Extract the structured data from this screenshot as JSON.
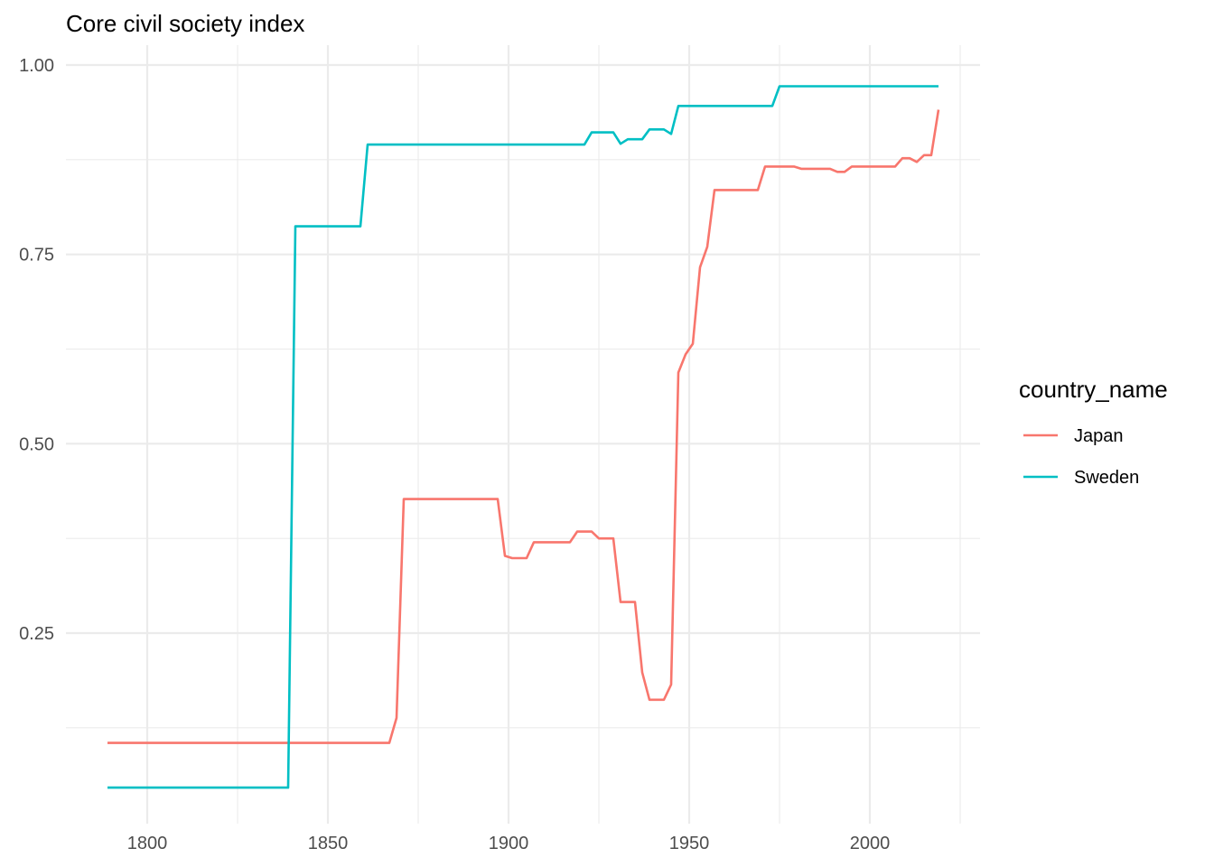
{
  "chart_data": {
    "type": "line",
    "title": "Core civil society index",
    "xlabel": "",
    "ylabel": "",
    "xlim": [
      1789,
      2019
    ],
    "ylim": [
      0.04,
      1.0
    ],
    "x_ticks": [
      1800,
      1850,
      1900,
      1950,
      2000
    ],
    "x_tick_labels": [
      "1800",
      "1850",
      "1900",
      "1950",
      "2000"
    ],
    "y_ticks": [
      0.25,
      0.5,
      0.75,
      1.0
    ],
    "y_tick_labels": [
      "0.25",
      "0.50",
      "0.75",
      "1.00"
    ],
    "grid": true,
    "legend": {
      "title": "country_name",
      "position": "right"
    },
    "series": [
      {
        "name": "Japan",
        "color": "#F8766D",
        "points": [
          [
            1789,
            0.105
          ],
          [
            1867,
            0.105
          ],
          [
            1869,
            0.138
          ],
          [
            1871,
            0.427
          ],
          [
            1897,
            0.427
          ],
          [
            1899,
            0.352
          ],
          [
            1901,
            0.349
          ],
          [
            1905,
            0.349
          ],
          [
            1907,
            0.37
          ],
          [
            1917,
            0.37
          ],
          [
            1919,
            0.384
          ],
          [
            1923,
            0.384
          ],
          [
            1925,
            0.375
          ],
          [
            1929,
            0.375
          ],
          [
            1931,
            0.291
          ],
          [
            1935,
            0.291
          ],
          [
            1937,
            0.198
          ],
          [
            1939,
            0.162
          ],
          [
            1943,
            0.162
          ],
          [
            1945,
            0.182
          ],
          [
            1947,
            0.594
          ],
          [
            1949,
            0.618
          ],
          [
            1951,
            0.632
          ],
          [
            1953,
            0.733
          ],
          [
            1955,
            0.76
          ],
          [
            1957,
            0.835
          ],
          [
            1969,
            0.835
          ],
          [
            1971,
            0.866
          ],
          [
            1979,
            0.866
          ],
          [
            1981,
            0.863
          ],
          [
            1989,
            0.863
          ],
          [
            1991,
            0.859
          ],
          [
            1993,
            0.859
          ],
          [
            1995,
            0.866
          ],
          [
            2007,
            0.866
          ],
          [
            2009,
            0.877
          ],
          [
            2011,
            0.877
          ],
          [
            2013,
            0.872
          ],
          [
            2015,
            0.881
          ],
          [
            2017,
            0.881
          ],
          [
            2019,
            0.941
          ]
        ]
      },
      {
        "name": "Sweden",
        "color": "#00BFC4",
        "points": [
          [
            1789,
            0.046
          ],
          [
            1839,
            0.046
          ],
          [
            1841,
            0.787
          ],
          [
            1859,
            0.787
          ],
          [
            1861,
            0.895
          ],
          [
            1921,
            0.895
          ],
          [
            1923,
            0.911
          ],
          [
            1929,
            0.911
          ],
          [
            1931,
            0.896
          ],
          [
            1933,
            0.902
          ],
          [
            1937,
            0.902
          ],
          [
            1939,
            0.915
          ],
          [
            1943,
            0.915
          ],
          [
            1945,
            0.909
          ],
          [
            1947,
            0.946
          ],
          [
            1973,
            0.946
          ],
          [
            1975,
            0.972
          ],
          [
            2019,
            0.972
          ]
        ]
      }
    ]
  }
}
